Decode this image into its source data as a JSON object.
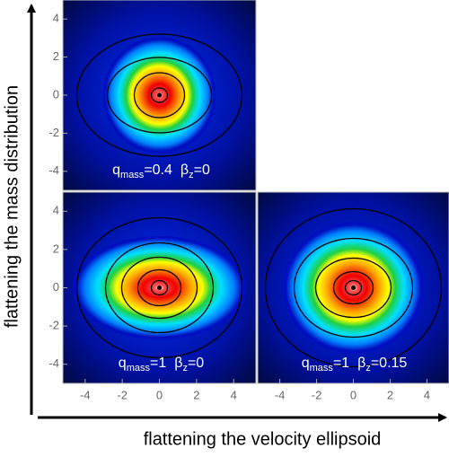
{
  "figure": {
    "xlabel": "flattening the velocity ellipsoid",
    "ylabel": "flattening the mass distribution"
  },
  "chart_data": [
    {
      "type": "image",
      "label": [
        "q",
        "mass",
        "=0.4",
        "β",
        "z",
        "=0"
      ],
      "xlim": [
        -5.2,
        5.2
      ],
      "ylim": [
        -5,
        5
      ],
      "yticks": [
        -4,
        -2,
        0,
        2,
        4
      ]
    },
    {
      "type": "image",
      "label": [
        "q",
        "mass",
        "=1",
        "β",
        "z",
        "=0"
      ],
      "xlim": [
        -5.2,
        5.2
      ],
      "ylim": [
        -5,
        5
      ],
      "xticks": [
        -4,
        -2,
        0,
        2,
        4
      ],
      "yticks": [
        -4,
        -2,
        0,
        2,
        4
      ]
    },
    {
      "type": "image",
      "label": [
        "q",
        "mass",
        "=1",
        "β",
        "z",
        "=0.15"
      ],
      "xlim": [
        -5.2,
        5.2
      ],
      "ylim": [
        -5,
        5
      ],
      "xticks": [
        -4,
        -2,
        0,
        2,
        4
      ]
    }
  ]
}
